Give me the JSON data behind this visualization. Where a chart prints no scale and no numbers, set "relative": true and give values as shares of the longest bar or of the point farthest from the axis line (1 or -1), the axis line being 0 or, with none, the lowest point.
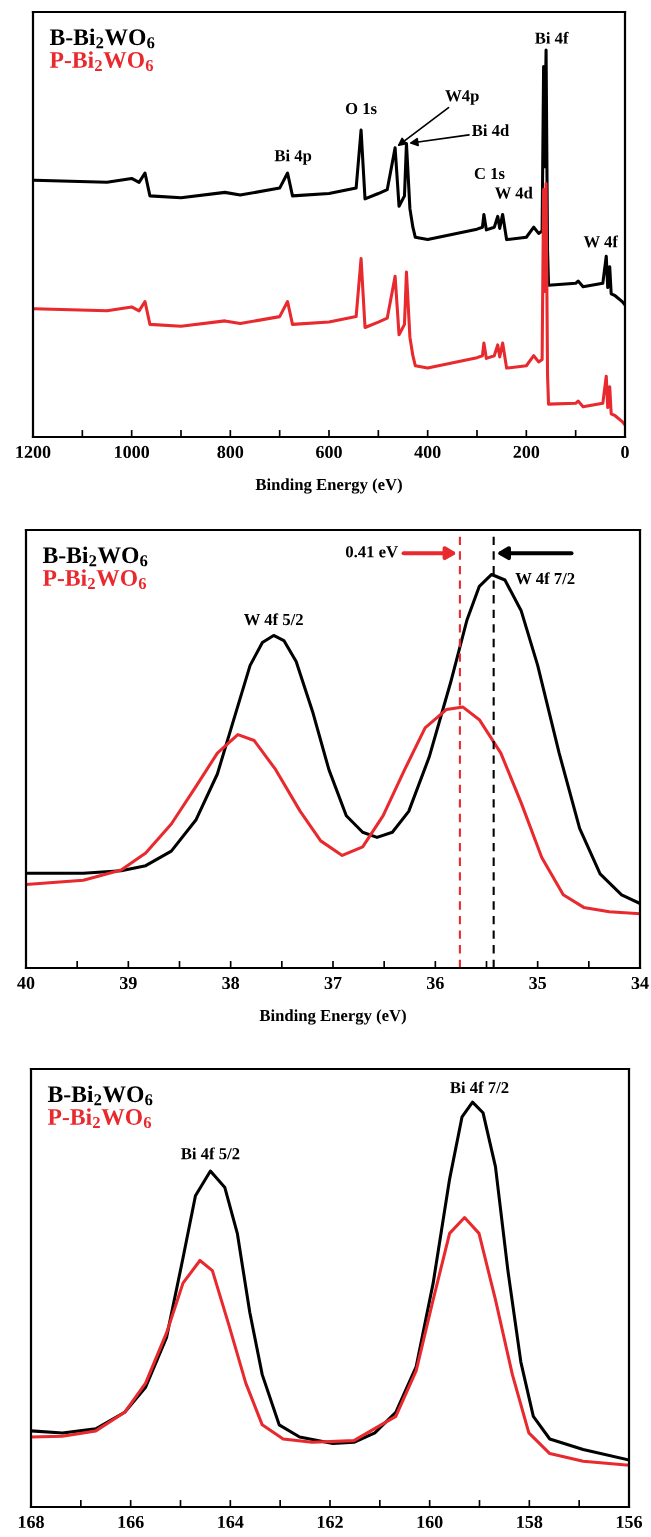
{
  "chart_data": [
    {
      "type": "line",
      "relative": true,
      "xlabel": "Binding Energy (eV)",
      "legend": "top left",
      "xlim": [
        1200,
        0
      ],
      "xticks": [
        1200,
        {
          "value": 1100,
          "label": null
        },
        1000,
        {
          "value": 900,
          "label": null
        },
        800,
        {
          "value": 700,
          "label": null
        },
        600,
        {
          "value": 500,
          "label": null
        },
        400,
        {
          "value": 300,
          "label": null
        },
        200,
        {
          "value": 100,
          "label": null
        },
        0
      ],
      "series": [
        {
          "name": "B-Bi$_{2}$WO$_{6}$",
          "color": "#000000",
          "x": [
            1196,
            1050,
            1000,
            985,
            973,
            963,
            900,
            811,
            780,
            700,
            684,
            674,
            600,
            545,
            535,
            527,
            500,
            482,
            466,
            458,
            447,
            443,
            436,
            430,
            425,
            400,
            300,
            289,
            286,
            281,
            265,
            258,
            254,
            248,
            240,
            200,
            185,
            175,
            168,
            165,
            163,
            160,
            157,
            155,
            100,
            95,
            85,
            45,
            38,
            35,
            31,
            28,
            20,
            5,
            1
          ],
          "values": [
            0.663,
            0.658,
            0.668,
            0.658,
            0.682,
            0.623,
            0.618,
            0.632,
            0.625,
            0.643,
            0.682,
            0.623,
            0.629,
            0.643,
            0.793,
            0.615,
            0.629,
            0.639,
            0.747,
            0.596,
            0.623,
            0.758,
            0.59,
            0.542,
            0.516,
            0.51,
            0.537,
            0.542,
            0.575,
            0.535,
            0.542,
            0.57,
            0.539,
            0.575,
            0.51,
            0.516,
            0.542,
            0.526,
            0.532,
            0.957,
            0.698,
            1.0,
            0.483,
            0.392,
            0.397,
            0.403,
            0.388,
            0.397,
            0.467,
            0.386,
            0.44,
            0.37,
            0.365,
            0.349,
            0.343
          ]
        },
        {
          "name": "P-Bi$_{2}$WO$_{6}$",
          "color": "#e8292e",
          "x": [
            1196,
            1050,
            1000,
            985,
            973,
            963,
            900,
            811,
            780,
            700,
            684,
            674,
            600,
            545,
            535,
            527,
            500,
            482,
            466,
            458,
            447,
            443,
            436,
            430,
            425,
            400,
            300,
            289,
            286,
            281,
            265,
            258,
            254,
            248,
            240,
            200,
            185,
            175,
            168,
            165,
            163,
            160,
            157,
            155,
            100,
            95,
            85,
            45,
            38,
            35,
            31,
            28,
            20,
            5,
            1
          ],
          "values": [
            0.331,
            0.326,
            0.336,
            0.326,
            0.35,
            0.291,
            0.286,
            0.3,
            0.293,
            0.311,
            0.35,
            0.291,
            0.297,
            0.311,
            0.461,
            0.283,
            0.297,
            0.307,
            0.415,
            0.264,
            0.291,
            0.426,
            0.258,
            0.21,
            0.184,
            0.178,
            0.205,
            0.21,
            0.243,
            0.203,
            0.21,
            0.238,
            0.207,
            0.243,
            0.178,
            0.184,
            0.21,
            0.194,
            0.2,
            0.64,
            0.376,
            0.655,
            0.16,
            0.085,
            0.087,
            0.093,
            0.078,
            0.087,
            0.157,
            0.076,
            0.13,
            0.06,
            0.055,
            0.039,
            0.033
          ]
        }
      ],
      "annotations": [
        {
          "text": "Bi 4p",
          "x": 684,
          "y": 0.682
        },
        {
          "text": "O 1s",
          "x": 535,
          "y": 0.793
        },
        {
          "text": "W4p",
          "x": 466,
          "y": 0.747
        },
        {
          "text": "Bi 4d",
          "x": 443,
          "y": 0.758
        },
        {
          "text": "C 1s",
          "x": 286,
          "y": 0.575
        },
        {
          "text": "W 4d",
          "x": 248,
          "y": 0.575
        },
        {
          "text": "Bi 4f",
          "x": 160,
          "y": 1.0
        },
        {
          "text": "W 4f",
          "x": 38,
          "y": 0.467
        }
      ]
    },
    {
      "type": "line",
      "relative": true,
      "xlabel": "Binding Energy (eV)",
      "legend": "top left",
      "xlim": [
        40,
        34
      ],
      "xticks": [
        40,
        {
          "value": 39.5,
          "label": null
        },
        39,
        {
          "value": 38.5,
          "label": null
        },
        38,
        {
          "value": 37.5,
          "label": null
        },
        37,
        {
          "value": 36.5,
          "label": null
        },
        36,
        {
          "value": 35.5,
          "label": null
        },
        35,
        {
          "value": 34.5,
          "label": null
        },
        34
      ],
      "series": [
        {
          "name": "B-Bi$_{2}$WO$_{6}$",
          "color": "#000000",
          "x": [
            40,
            39.44,
            39.07,
            38.83,
            38.58,
            38.34,
            38.13,
            37.97,
            37.81,
            37.69,
            37.58,
            37.48,
            37.36,
            37.2,
            37.04,
            36.87,
            36.71,
            36.57,
            36.42,
            36.26,
            36.06,
            35.85,
            35.69,
            35.57,
            35.45,
            35.32,
            35.16,
            35.0,
            34.79,
            34.59,
            34.39,
            34.18,
            34.0
          ],
          "values": [
            0.241,
            0.241,
            0.247,
            0.26,
            0.297,
            0.376,
            0.493,
            0.631,
            0.769,
            0.827,
            0.845,
            0.832,
            0.779,
            0.652,
            0.504,
            0.387,
            0.345,
            0.332,
            0.345,
            0.398,
            0.536,
            0.726,
            0.885,
            0.97,
            1.0,
            0.986,
            0.907,
            0.769,
            0.546,
            0.355,
            0.239,
            0.186,
            0.164
          ]
        },
        {
          "name": "P-Bi$_{2}$WO$_{6}$",
          "color": "#e8292e",
          "x": [
            40,
            39.44,
            39.07,
            38.83,
            38.58,
            38.34,
            38.13,
            37.93,
            37.77,
            37.56,
            37.32,
            37.12,
            36.91,
            36.71,
            36.51,
            36.3,
            36.1,
            35.89,
            35.73,
            35.57,
            35.36,
            35.16,
            34.96,
            34.75,
            34.55,
            34.3,
            34.0
          ],
          "values": [
            0.212,
            0.223,
            0.249,
            0.292,
            0.366,
            0.461,
            0.546,
            0.593,
            0.578,
            0.504,
            0.398,
            0.323,
            0.286,
            0.308,
            0.387,
            0.504,
            0.61,
            0.657,
            0.663,
            0.631,
            0.546,
            0.419,
            0.281,
            0.186,
            0.154,
            0.143,
            0.138
          ]
        }
      ],
      "ref_lines": [
        {
          "axis": "x",
          "value": 35.76,
          "color": "#e8292e",
          "line_style": "dashed"
        },
        {
          "axis": "x",
          "value": 35.43,
          "color": "#000000",
          "line_style": "dashed"
        }
      ],
      "annotations": [
        "0.41 eV",
        {
          "text": "W 4f 5/2",
          "x": 37.58,
          "y": 0.845
        },
        {
          "text": "W 4f 7/2",
          "x": 35.45,
          "y": 1.0
        }
      ]
    },
    {
      "type": "line",
      "relative": true,
      "legend": "top left",
      "xlim": [
        168,
        156
      ],
      "xticks": [
        168,
        {
          "value": 167,
          "label": null
        },
        166,
        {
          "value": 165,
          "label": null
        },
        164,
        {
          "value": 163,
          "label": null
        },
        162,
        {
          "value": 161,
          "label": null
        },
        160,
        {
          "value": 159,
          "label": null
        },
        158,
        {
          "value": 157,
          "label": null
        },
        156
      ],
      "series": [
        {
          "name": "B-Bi$_{2}$WO$_{6}$",
          "color": "#000000",
          "x": [
            168,
            167.37,
            166.7,
            166.12,
            165.7,
            165.28,
            164.95,
            164.7,
            164.4,
            164.11,
            163.86,
            163.61,
            163.36,
            163.02,
            162.61,
            161.94,
            161.52,
            161.1,
            160.68,
            160.27,
            159.93,
            159.6,
            159.35,
            159.14,
            158.93,
            158.68,
            158.43,
            158.17,
            157.92,
            157.59,
            156.92,
            156.0
          ],
          "values": [
            0.188,
            0.183,
            0.193,
            0.234,
            0.296,
            0.419,
            0.615,
            0.769,
            0.83,
            0.789,
            0.676,
            0.481,
            0.327,
            0.203,
            0.173,
            0.157,
            0.16,
            0.183,
            0.234,
            0.347,
            0.553,
            0.81,
            0.964,
            1.0,
            0.974,
            0.841,
            0.584,
            0.358,
            0.224,
            0.168,
            0.142,
            0.116
          ]
        },
        {
          "name": "P-Bi$_{2}$WO$_{6}$",
          "color": "#e8292e",
          "x": [
            168,
            167.37,
            166.7,
            166.12,
            165.7,
            165.28,
            164.95,
            164.61,
            164.36,
            164.03,
            163.69,
            163.36,
            162.94,
            162.36,
            161.52,
            160.68,
            160.27,
            159.93,
            159.6,
            159.3,
            159.01,
            158.68,
            158.34,
            158.01,
            157.59,
            156.92,
            156.0
          ],
          "values": [
            0.173,
            0.175,
            0.188,
            0.234,
            0.306,
            0.43,
            0.553,
            0.609,
            0.584,
            0.45,
            0.306,
            0.203,
            0.168,
            0.16,
            0.164,
            0.224,
            0.337,
            0.512,
            0.676,
            0.715,
            0.676,
            0.512,
            0.327,
            0.183,
            0.132,
            0.113,
            0.103
          ]
        }
      ],
      "annotations": [
        {
          "text": "Bi 4f 5/2",
          "x": 164.4,
          "y": 0.83
        },
        {
          "text": "Bi 4f 7/2",
          "x": 159.14,
          "y": 1.0
        }
      ]
    }
  ]
}
